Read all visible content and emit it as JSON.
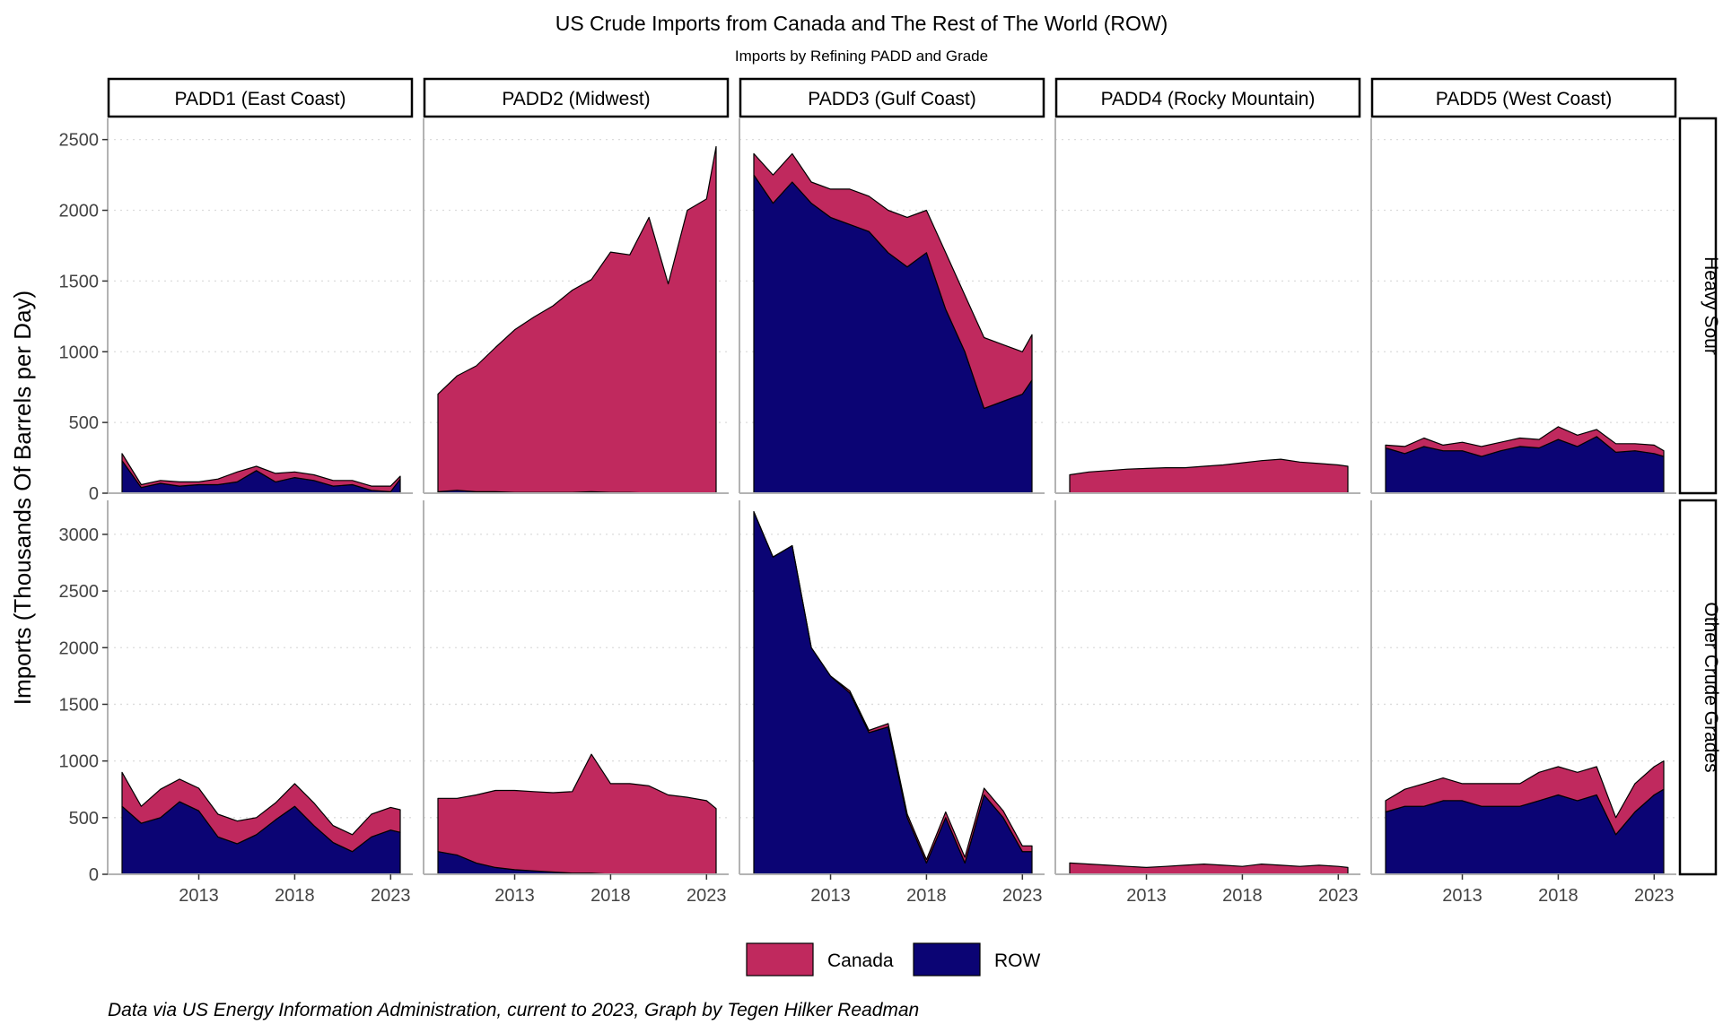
{
  "chart_data": {
    "type": "area",
    "stacked": true,
    "title": "US Crude Imports from Canada and The Rest of The World (ROW)",
    "subtitle": "Imports by Refining PADD and Grade",
    "ylabel": "Imports (Thousands Of Barrels per Day)",
    "xlabel": "",
    "caption": "Data via US Energy Information Administration, current to 2023, Graph by Tegen Hilker Readman",
    "columns": [
      "PADD1 (East Coast)",
      "PADD2 (Midwest)",
      "PADD3 (Gulf Coast)",
      "PADD4 (Rocky Mountain)",
      "PADD5 (West Coast)"
    ],
    "rows": [
      "Heavy Sour",
      "Other Crude Grades"
    ],
    "x_ticks": [
      "2013",
      "2018",
      "2023"
    ],
    "x_range": [
      2009.0,
      2023.5
    ],
    "y_axes": [
      {
        "ticks": [
          "0",
          "500",
          "1000",
          "1500",
          "2000",
          "2500"
        ],
        "ylim": [
          0,
          2650
        ]
      },
      {
        "ticks": [
          "0",
          "500",
          "1000",
          "1500",
          "2000",
          "2500",
          "3000"
        ],
        "ylim": [
          0,
          3300
        ]
      }
    ],
    "legend": {
      "position": "bottom",
      "entries": [
        "Canada",
        "ROW"
      ]
    },
    "series_colors": {
      "Canada": "#c0295e",
      "ROW": "#0b0474"
    },
    "grid": "dotted horizontal",
    "panels": [
      {
        "row": "Heavy Sour",
        "column": "PADD1 (East Coast)",
        "x": [
          2009.0,
          2010.0,
          2011.0,
          2012.0,
          2013.0,
          2014.0,
          2015.0,
          2016.0,
          2017.0,
          2018.0,
          2019.0,
          2020.0,
          2021.0,
          2022.0,
          2023.0,
          2023.5
        ],
        "series": [
          {
            "name": "ROW",
            "values": [
              230,
              40,
              70,
              50,
              60,
              60,
              80,
              160,
              80,
              110,
              90,
              50,
              60,
              20,
              10,
              100
            ]
          },
          {
            "name": "Canada",
            "values": [
              50,
              20,
              20,
              30,
              20,
              40,
              70,
              30,
              60,
              40,
              40,
              40,
              30,
              30,
              40,
              20
            ]
          }
        ]
      },
      {
        "row": "Heavy Sour",
        "column": "PADD2 (Midwest)",
        "x": [
          2009.0,
          2010.0,
          2011.0,
          2012.0,
          2013.0,
          2014.0,
          2015.0,
          2016.0,
          2017.0,
          2018.0,
          2019.0,
          2020.0,
          2021.0,
          2022.0,
          2023.0,
          2023.5
        ],
        "series": [
          {
            "name": "ROW",
            "values": [
              10,
              20,
              10,
              10,
              5,
              5,
              5,
              5,
              10,
              5,
              5,
              0,
              0,
              0,
              0,
              0
            ]
          },
          {
            "name": "Canada",
            "values": [
              690,
              810,
              890,
              1020,
              1150,
              1240,
              1320,
              1430,
              1500,
              1700,
              1680,
              1950,
              1480,
              2000,
              2080,
              2450
            ]
          }
        ]
      },
      {
        "row": "Heavy Sour",
        "column": "PADD3 (Gulf Coast)",
        "x": [
          2009.0,
          2010.0,
          2011.0,
          2012.0,
          2013.0,
          2014.0,
          2015.0,
          2016.0,
          2017.0,
          2018.0,
          2019.0,
          2020.0,
          2021.0,
          2022.0,
          2023.0,
          2023.5
        ],
        "series": [
          {
            "name": "ROW",
            "values": [
              2250,
              2050,
              2200,
              2050,
              1950,
              1900,
              1850,
              1700,
              1600,
              1700,
              1300,
              1000,
              600,
              650,
              700,
              800
            ]
          },
          {
            "name": "Canada",
            "values": [
              150,
              200,
              200,
              150,
              200,
              250,
              250,
              300,
              350,
              300,
              400,
              400,
              500,
              400,
              300,
              320
            ]
          }
        ]
      },
      {
        "row": "Heavy Sour",
        "column": "PADD4 (Rocky Mountain)",
        "x": [
          2009.0,
          2010.0,
          2011.0,
          2012.0,
          2013.0,
          2014.0,
          2015.0,
          2016.0,
          2017.0,
          2018.0,
          2019.0,
          2020.0,
          2021.0,
          2022.0,
          2023.0,
          2023.5
        ],
        "series": [
          {
            "name": "ROW",
            "values": [
              0,
              0,
              0,
              0,
              0,
              0,
              0,
              0,
              0,
              0,
              0,
              0,
              0,
              0,
              0,
              0
            ]
          },
          {
            "name": "Canada",
            "values": [
              130,
              150,
              160,
              170,
              175,
              180,
              180,
              190,
              200,
              215,
              230,
              240,
              220,
              210,
              200,
              190
            ]
          }
        ]
      },
      {
        "row": "Heavy Sour",
        "column": "PADD5 (West Coast)",
        "x": [
          2009.0,
          2010.0,
          2011.0,
          2012.0,
          2013.0,
          2014.0,
          2015.0,
          2016.0,
          2017.0,
          2018.0,
          2019.0,
          2020.0,
          2021.0,
          2022.0,
          2023.0,
          2023.5
        ],
        "series": [
          {
            "name": "ROW",
            "values": [
              320,
              280,
              330,
              300,
              300,
              260,
              300,
              330,
              320,
              380,
              330,
              400,
              290,
              300,
              280,
              260
            ]
          },
          {
            "name": "Canada",
            "values": [
              20,
              50,
              60,
              40,
              60,
              70,
              60,
              60,
              60,
              90,
              80,
              50,
              60,
              50,
              60,
              40
            ]
          }
        ]
      },
      {
        "row": "Other Crude Grades",
        "column": "PADD1 (East Coast)",
        "x": [
          2009.0,
          2010.0,
          2011.0,
          2012.0,
          2013.0,
          2014.0,
          2015.0,
          2016.0,
          2017.0,
          2018.0,
          2019.0,
          2020.0,
          2021.0,
          2022.0,
          2023.0,
          2023.5
        ],
        "series": [
          {
            "name": "ROW",
            "values": [
              600,
              450,
              500,
              640,
              560,
              330,
              270,
              350,
              480,
              600,
              430,
              280,
              200,
              330,
              390,
              370
            ]
          },
          {
            "name": "Canada",
            "values": [
              300,
              150,
              250,
              200,
              200,
              200,
              200,
              150,
              150,
              200,
              200,
              150,
              150,
              200,
              200,
              200
            ]
          }
        ]
      },
      {
        "row": "Other Crude Grades",
        "column": "PADD2 (Midwest)",
        "x": [
          2009.0,
          2010.0,
          2011.0,
          2012.0,
          2013.0,
          2014.0,
          2015.0,
          2016.0,
          2017.0,
          2018.0,
          2019.0,
          2020.0,
          2021.0,
          2022.0,
          2023.0,
          2023.5
        ],
        "series": [
          {
            "name": "ROW",
            "values": [
              200,
              170,
              100,
              60,
              40,
              30,
              20,
              10,
              10,
              0,
              0,
              0,
              0,
              0,
              0,
              0
            ]
          },
          {
            "name": "Canada",
            "values": [
              470,
              500,
              600,
              680,
              700,
              700,
              700,
              720,
              1050,
              800,
              800,
              780,
              700,
              680,
              650,
              580
            ]
          }
        ]
      },
      {
        "row": "Other Crude Grades",
        "column": "PADD3 (Gulf Coast)",
        "x": [
          2009.0,
          2010.0,
          2011.0,
          2012.0,
          2013.0,
          2014.0,
          2015.0,
          2016.0,
          2017.0,
          2018.0,
          2019.0,
          2020.0,
          2021.0,
          2022.0,
          2023.0,
          2023.5
        ],
        "series": [
          {
            "name": "ROW",
            "values": [
              3200,
              2800,
              2900,
              2000,
              1750,
              1600,
              1250,
              1300,
              500,
              100,
              500,
              100,
              700,
              500,
              200,
              200
            ]
          },
          {
            "name": "Canada",
            "values": [
              0,
              0,
              0,
              0,
              0,
              20,
              20,
              30,
              30,
              30,
              50,
              50,
              60,
              60,
              50,
              50
            ]
          }
        ]
      },
      {
        "row": "Other Crude Grades",
        "column": "PADD4 (Rocky Mountain)",
        "x": [
          2009.0,
          2010.0,
          2011.0,
          2012.0,
          2013.0,
          2014.0,
          2015.0,
          2016.0,
          2017.0,
          2018.0,
          2019.0,
          2020.0,
          2021.0,
          2022.0,
          2023.0,
          2023.5
        ],
        "series": [
          {
            "name": "ROW",
            "values": [
              0,
              0,
              0,
              0,
              0,
              0,
              0,
              0,
              0,
              0,
              0,
              0,
              0,
              0,
              0,
              0
            ]
          },
          {
            "name": "Canada",
            "values": [
              100,
              90,
              80,
              70,
              60,
              70,
              80,
              90,
              80,
              70,
              90,
              80,
              70,
              80,
              70,
              60
            ]
          }
        ]
      },
      {
        "row": "Other Crude Grades",
        "column": "PADD5 (West Coast)",
        "x": [
          2009.0,
          2010.0,
          2011.0,
          2012.0,
          2013.0,
          2014.0,
          2015.0,
          2016.0,
          2017.0,
          2018.0,
          2019.0,
          2020.0,
          2021.0,
          2022.0,
          2023.0,
          2023.5
        ],
        "series": [
          {
            "name": "ROW",
            "values": [
              550,
              600,
              600,
              650,
              650,
              600,
              600,
              600,
              650,
              700,
              650,
              700,
              350,
              550,
              700,
              750
            ]
          },
          {
            "name": "Canada",
            "values": [
              100,
              150,
              200,
              200,
              150,
              200,
              200,
              200,
              250,
              250,
              250,
              250,
              150,
              250,
              250,
              250
            ]
          }
        ]
      }
    ]
  }
}
